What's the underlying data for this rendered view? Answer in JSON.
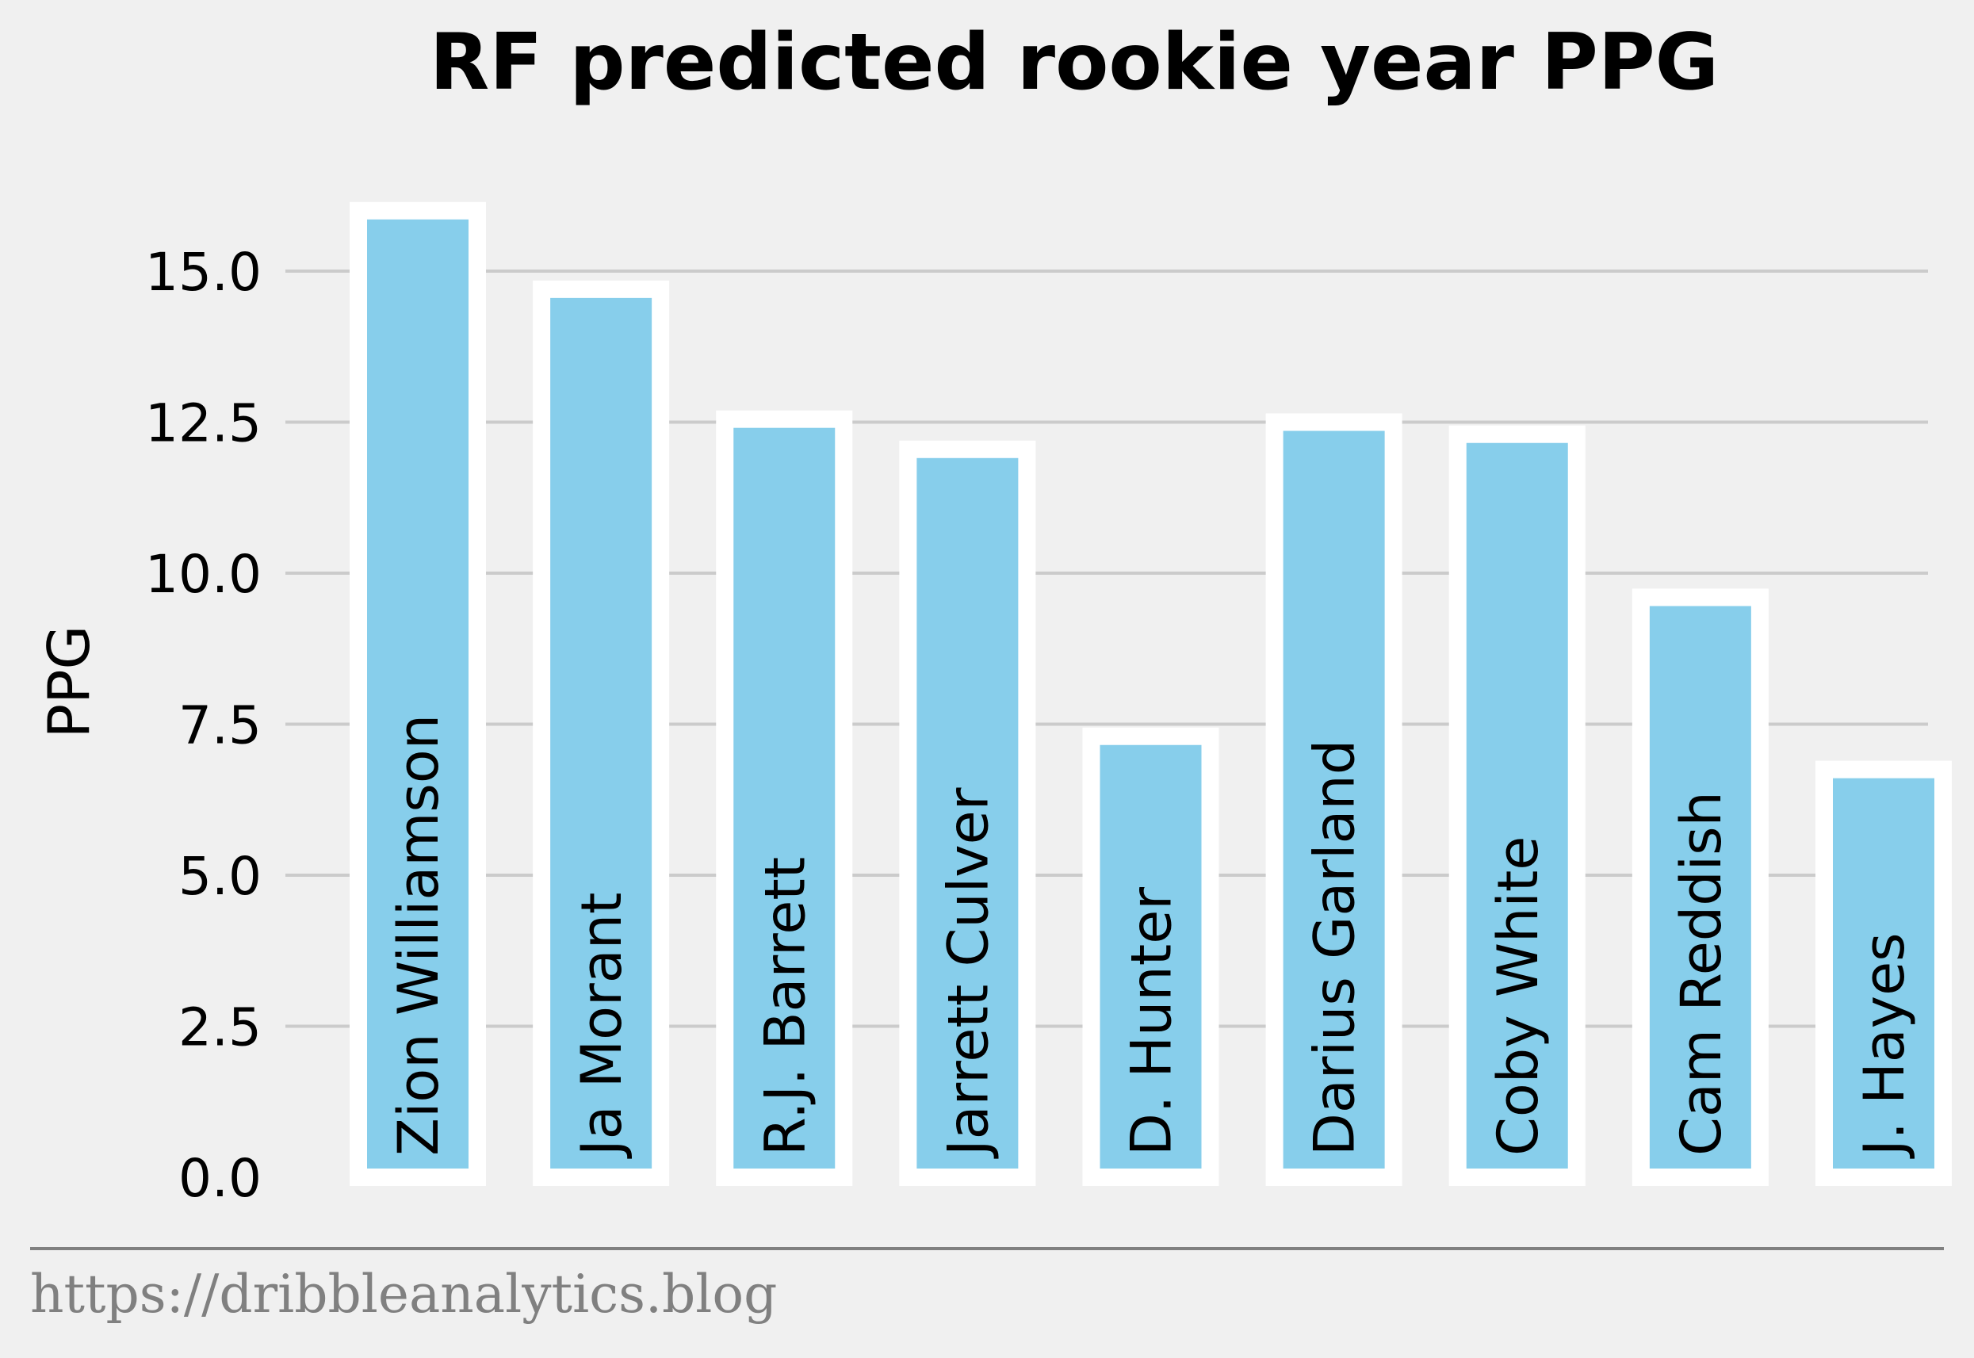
{
  "chart_data": {
    "type": "bar",
    "title": "RF predicted rookie year PPG",
    "xlabel": "",
    "ylabel": "PPG",
    "categories": [
      "Zion Williamson",
      "Ja Morant",
      "R.J. Barrett",
      "Jarrett Culver",
      "D. Hunter",
      "Darius Garland",
      "Coby White",
      "Cam Reddish",
      "J. Hayes"
    ],
    "values": [
      16.0,
      14.7,
      12.55,
      12.05,
      7.3,
      12.5,
      12.3,
      9.6,
      6.75
    ],
    "ylim": [
      0,
      16.8
    ],
    "yticks": [
      "0.0",
      "2.5",
      "5.0",
      "7.5",
      "10.0",
      "12.5",
      "15.0"
    ],
    "ytick_values": [
      0,
      2.5,
      5,
      7.5,
      10,
      12.5,
      15
    ],
    "grid": "horizontal",
    "bar_color": "#87ceeb",
    "bar_edge_color": "#ffffff",
    "grid_color": "#cbcbcb",
    "background": "#f0f0f0"
  },
  "footer": {
    "source": "https://dribbleanalytics.blog",
    "color": "#808080"
  }
}
